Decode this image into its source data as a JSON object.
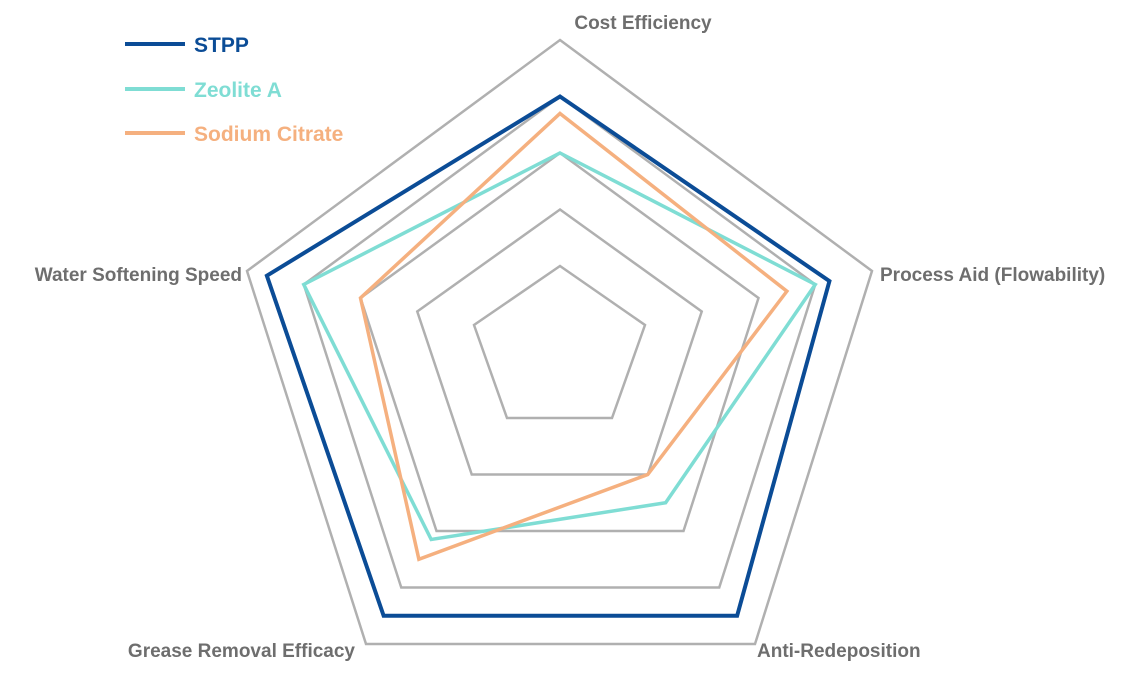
{
  "chart_data": {
    "type": "radar",
    "axes": [
      "Cost Efficiency",
      "Process Aid (Flowability)",
      "Anti-Redeposition",
      "Grease Removal Efficacy",
      "Water Softening Speed"
    ],
    "rings": [
      2,
      4,
      6,
      8,
      10
    ],
    "range": [
      0,
      10
    ],
    "grid": true,
    "legend_position": "top-left",
    "series": [
      {
        "name": "STPP",
        "color": "#0b4c96",
        "values": [
          8,
          8.5,
          9,
          9,
          9.3
        ]
      },
      {
        "name": "Zeolite A",
        "color": "#7fddd4",
        "values": [
          6,
          8,
          5,
          6.3,
          8
        ]
      },
      {
        "name": "Sodium Citrate",
        "color": "#f5b07f",
        "values": [
          7.4,
          7,
          4,
          7,
          6
        ]
      }
    ],
    "grid_color": "#b0b0b0",
    "label_color": "#6e6e6e"
  }
}
